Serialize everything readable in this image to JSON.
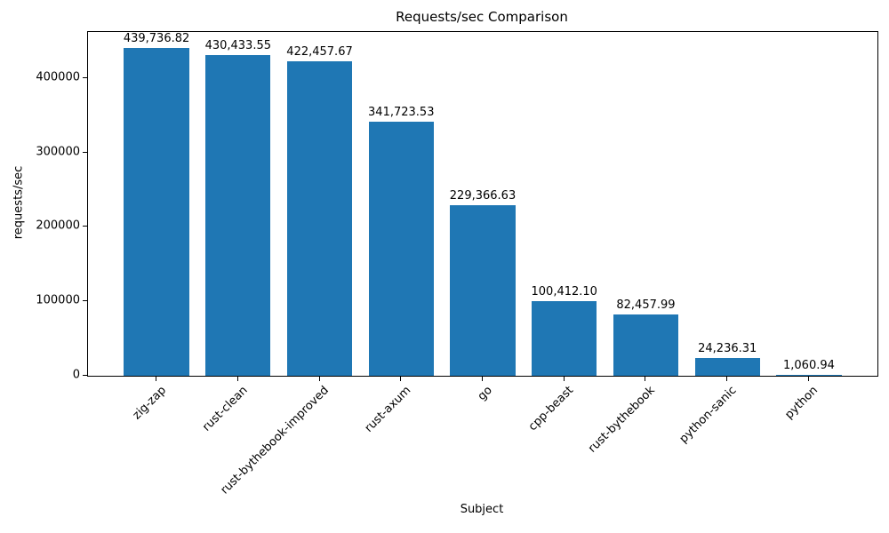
{
  "chart_data": {
    "type": "bar",
    "title": "Requests/sec Comparison",
    "xlabel": "Subject",
    "ylabel": "requests/sec",
    "categories": [
      "zig-zap",
      "rust-clean",
      "rust-bythebook-improved",
      "rust-axum",
      "go",
      "cpp-beast",
      "rust-bythebook",
      "python-sanic",
      "python"
    ],
    "values": [
      439736.82,
      430433.55,
      422457.67,
      341723.53,
      229366.63,
      100412.1,
      82457.99,
      24236.31,
      1060.94
    ],
    "bar_labels": [
      "439,736.82",
      "430,433.55",
      "422,457.67",
      "341,723.53",
      "229,366.63",
      "100,412.10",
      "82,457.99",
      "24,236.31",
      "1,060.94"
    ],
    "bar_color": "#1f77b4",
    "ylim": [
      0,
      461724
    ],
    "yticks": [
      0,
      100000,
      200000,
      300000,
      400000
    ],
    "ytick_labels": [
      "0",
      "100000",
      "200000",
      "300000",
      "400000"
    ],
    "x_tick_rotation_deg": 45,
    "grid": false,
    "legend": "none"
  }
}
